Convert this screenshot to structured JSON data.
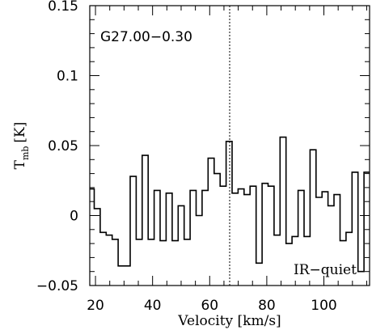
{
  "chart_data": {
    "type": "line",
    "source_label": "G27.00−0.30",
    "class_label": "IR−quiet",
    "xlabel": "Velocity [km/s]",
    "ylabel_main": "T",
    "ylabel_sub": "mb",
    "ylabel_unit": "[K]",
    "xlim": [
      18,
      116
    ],
    "ylim": [
      -0.05,
      0.15
    ],
    "x_ticks": [
      "20",
      "40",
      "60",
      "80",
      "100"
    ],
    "y_ticks": [
      "−0.05",
      "0",
      "0.05",
      "0.1",
      "0.15"
    ],
    "marker_velocity": 67,
    "x": [
      18.5,
      20.6,
      22.7,
      24.8,
      26.9,
      29.0,
      31.1,
      33.2,
      35.3,
      37.4,
      39.5,
      41.6,
      43.7,
      45.8,
      47.9,
      50.0,
      52.1,
      54.2,
      56.3,
      58.4,
      60.5,
      62.6,
      64.7,
      66.8,
      68.9,
      71.0,
      73.1,
      75.2,
      77.3,
      79.4,
      81.5,
      83.6,
      85.7,
      87.8,
      89.9,
      92.0,
      94.1,
      96.2,
      98.3,
      100.4,
      102.5,
      104.6,
      106.7,
      108.8,
      110.9,
      113.0,
      115.1
    ],
    "values": [
      0.019,
      0.005,
      -0.012,
      -0.014,
      -0.017,
      -0.036,
      -0.036,
      0.028,
      -0.017,
      0.043,
      -0.017,
      0.018,
      -0.018,
      0.016,
      -0.018,
      0.007,
      -0.017,
      0.018,
      0.0,
      0.018,
      0.041,
      0.03,
      0.021,
      0.053,
      0.016,
      0.019,
      0.015,
      0.021,
      -0.034,
      0.023,
      0.021,
      -0.014,
      0.056,
      -0.02,
      -0.015,
      0.018,
      -0.015,
      0.047,
      0.013,
      0.017,
      0.007,
      0.015,
      -0.018,
      -0.012,
      0.031,
      -0.04,
      0.031
    ],
    "grid": false
  }
}
